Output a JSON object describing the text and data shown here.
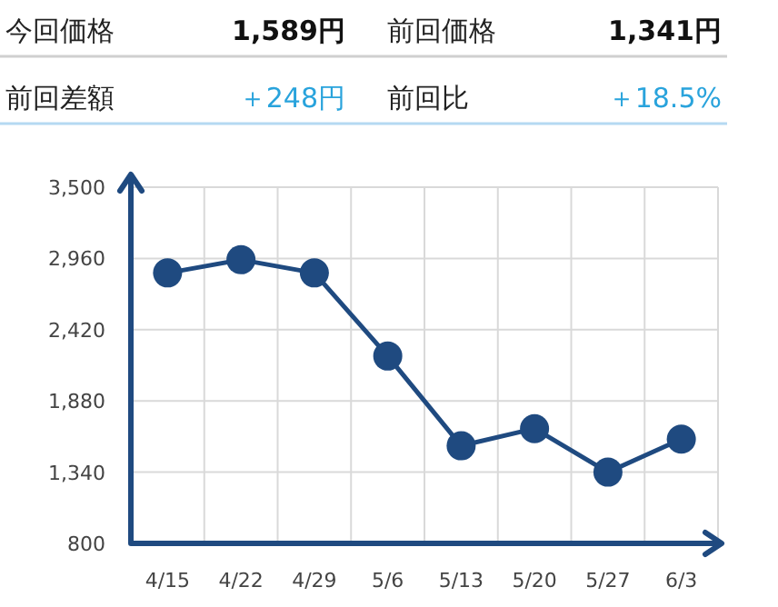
{
  "chart_data": [
    {
      "type": "other",
      "annotations": [
        "今回価格",
        "1,589円",
        "前回価格",
        "1,341円",
        "前回差額",
        "＋248円",
        "前回比",
        "＋18.5%"
      ]
    },
    {
      "type": "line",
      "categories": [
        "4/15",
        "4/22",
        "4/29",
        "5/6",
        "5/13",
        "5/20",
        "5/27",
        "6/3"
      ],
      "values": [
        2850,
        2950,
        2850,
        2220,
        1540,
        1670,
        1340,
        1590
      ],
      "color": "#1f4a80",
      "marker": "circle",
      "grid": true,
      "ylim": [
        800,
        3500
      ],
      "yticks": [
        800,
        {
          "value": 1340,
          "label": "1,340"
        },
        {
          "value": 1880,
          "label": "1,880"
        },
        {
          "value": 2420,
          "label": "2,420"
        },
        {
          "value": 2960,
          "label": "2,960"
        },
        {
          "value": 3500,
          "label": "3,500"
        }
      ]
    }
  ]
}
